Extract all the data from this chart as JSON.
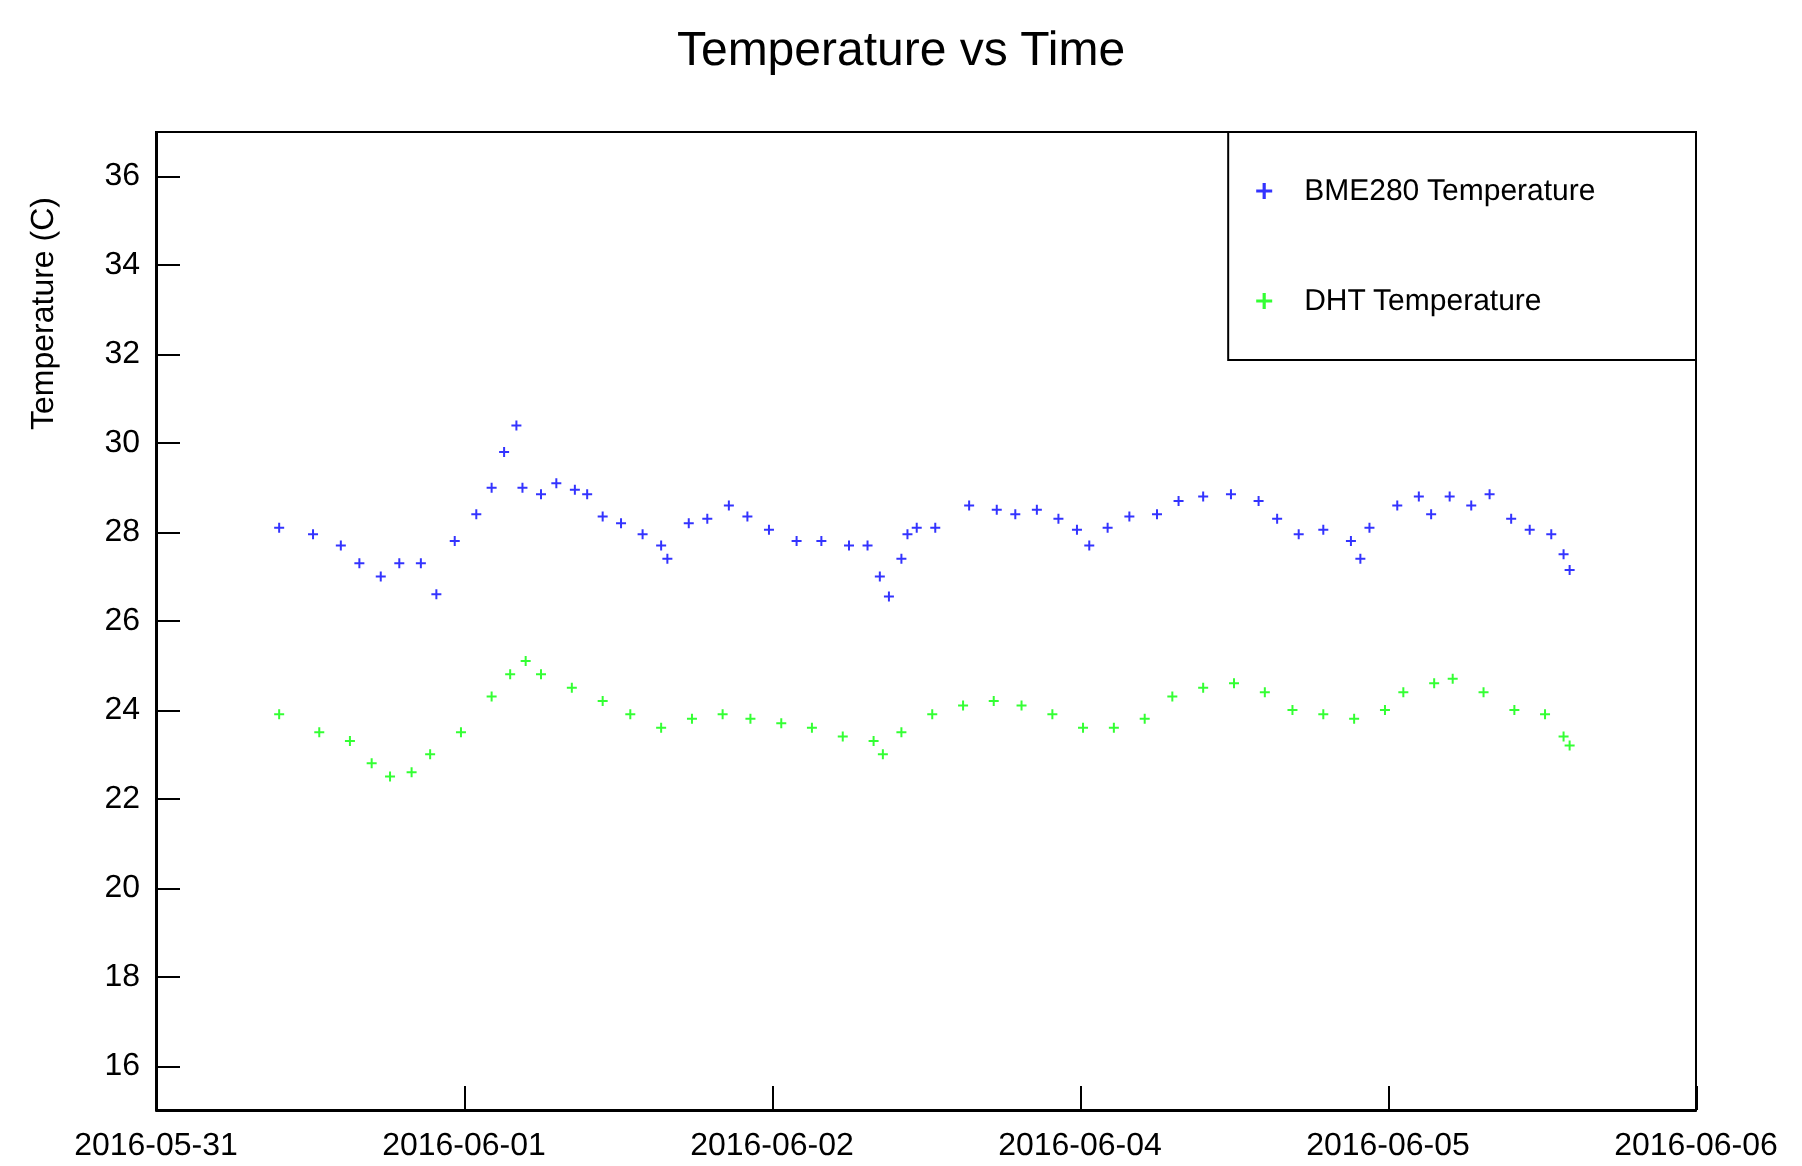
{
  "chart_data": {
    "type": "scatter",
    "title": "Temperature vs Time",
    "ylabel": "Temperature (C)",
    "xlim": [
      "2016-05-31T12:00",
      "2016-06-06T12:00"
    ],
    "xticks": [
      {
        "value": "2016-05-31T12:00",
        "label": "2016-05-31"
      },
      {
        "value": "2016-06-01T16:48",
        "label": "2016-06-01"
      },
      {
        "value": "2016-06-02T21:36",
        "label": "2016-06-02"
      },
      {
        "value": "2016-06-04T02:24",
        "label": "2016-06-04"
      },
      {
        "value": "2016-06-05T07:12",
        "label": "2016-06-05"
      },
      {
        "value": "2016-06-06T12:00",
        "label": "2016-06-06"
      }
    ],
    "ylim": [
      15,
      37
    ],
    "yticks": [
      16,
      18,
      20,
      22,
      24,
      26,
      28,
      30,
      32,
      34,
      36
    ],
    "grid": false,
    "legend": "top right",
    "marker": "cross",
    "series": [
      {
        "name": "BME280 Temperature",
        "color": "#0000ff",
        "x": [
          "2016-05-31T23:31",
          "2016-06-01T02:41",
          "2016-06-01T05:17",
          "2016-06-01T07:01",
          "2016-06-01T09:01",
          "2016-06-01T10:45",
          "2016-06-01T12:46",
          "2016-06-01T14:13",
          "2016-06-01T15:56",
          "2016-06-01T17:57",
          "2016-06-01T19:23",
          "2016-06-01T20:33",
          "2016-06-01T21:42",
          "2016-06-01T22:16",
          "2016-06-02T00:00",
          "2016-06-02T01:26",
          "2016-06-02T03:10",
          "2016-06-02T04:19",
          "2016-06-02T05:46",
          "2016-06-02T07:29",
          "2016-06-02T09:30",
          "2016-06-02T11:14",
          "2016-06-02T11:49",
          "2016-06-02T13:49",
          "2016-06-02T15:33",
          "2016-06-02T17:34",
          "2016-06-02T19:18",
          "2016-06-02T21:19",
          "2016-06-02T23:54",
          "2016-06-03T02:13",
          "2016-06-03T04:48",
          "2016-06-03T06:32",
          "2016-06-03T07:41",
          "2016-06-03T08:32",
          "2016-06-03T09:42",
          "2016-06-03T10:16",
          "2016-06-03T11:08",
          "2016-06-03T12:52",
          "2016-06-03T16:02",
          "2016-06-03T18:37",
          "2016-06-03T20:21",
          "2016-06-03T22:22",
          "2016-06-04T00:23",
          "2016-06-04T02:07",
          "2016-06-04T03:16",
          "2016-06-04T04:59",
          "2016-06-04T07:01",
          "2016-06-04T09:36",
          "2016-06-04T11:37",
          "2016-06-04T13:55",
          "2016-06-04T16:31",
          "2016-06-04T19:06",
          "2016-06-04T20:50",
          "2016-06-04T22:51",
          "2016-06-05T01:09",
          "2016-06-05T03:44",
          "2016-06-05T04:37",
          "2016-06-05T05:28",
          "2016-06-05T08:04",
          "2016-06-05T10:05",
          "2016-06-05T11:14",
          "2016-06-05T12:58",
          "2016-06-05T14:59",
          "2016-06-05T16:42",
          "2016-06-05T18:43",
          "2016-06-05T20:27",
          "2016-06-05T22:28",
          "2016-06-05T23:37",
          "2016-06-06T00:11"
        ],
        "values": [
          28.1,
          27.95,
          27.7,
          27.3,
          27.0,
          27.3,
          27.3,
          26.6,
          27.8,
          28.4,
          29.0,
          29.8,
          30.4,
          29.0,
          28.85,
          29.1,
          28.95,
          28.85,
          28.35,
          28.2,
          27.95,
          27.7,
          27.4,
          28.2,
          28.3,
          28.6,
          28.35,
          28.05,
          27.8,
          27.8,
          27.7,
          27.7,
          27.0,
          26.55,
          27.4,
          27.95,
          28.1,
          28.1,
          28.6,
          28.5,
          28.4,
          28.5,
          28.3,
          28.05,
          27.7,
          28.1,
          28.35,
          28.4,
          28.7,
          28.8,
          28.85,
          28.7,
          28.3,
          27.95,
          28.05,
          27.8,
          27.4,
          28.1,
          28.6,
          28.8,
          28.4,
          28.8,
          28.6,
          28.85,
          28.3,
          28.05,
          27.95,
          27.5,
          27.15
        ]
      },
      {
        "name": "DHT Temperature",
        "color": "#00ff00",
        "x": [
          "2016-05-31T23:31",
          "2016-06-01T03:16",
          "2016-06-01T06:08",
          "2016-06-01T08:10",
          "2016-06-01T09:53",
          "2016-06-01T11:54",
          "2016-06-01T13:38",
          "2016-06-01T16:31",
          "2016-06-01T19:23",
          "2016-06-01T21:07",
          "2016-06-01T22:34",
          "2016-06-02T00:00",
          "2016-06-02T02:53",
          "2016-06-02T05:46",
          "2016-06-02T08:21",
          "2016-06-02T11:14",
          "2016-06-02T14:07",
          "2016-06-02T16:59",
          "2016-06-02T19:35",
          "2016-06-02T22:28",
          "2016-06-03T01:20",
          "2016-06-03T04:13",
          "2016-06-03T07:06",
          "2016-06-03T07:58",
          "2016-06-03T09:42",
          "2016-06-03T12:35",
          "2016-06-03T15:28",
          "2016-06-03T18:20",
          "2016-06-03T20:56",
          "2016-06-03T23:49",
          "2016-06-04T02:41",
          "2016-06-04T05:34",
          "2016-06-04T08:27",
          "2016-06-04T11:02",
          "2016-06-04T13:55",
          "2016-06-04T16:48",
          "2016-06-04T19:41",
          "2016-06-04T22:16",
          "2016-06-05T01:09",
          "2016-06-05T04:02",
          "2016-06-05T06:55",
          "2016-06-05T08:38",
          "2016-06-05T11:31",
          "2016-06-05T13:15",
          "2016-06-05T16:08",
          "2016-06-05T19:01",
          "2016-06-05T21:53",
          "2016-06-05T23:37",
          "2016-06-06T00:11"
        ],
        "values": [
          23.9,
          23.5,
          23.3,
          22.8,
          22.5,
          22.6,
          23.0,
          23.5,
          24.3,
          24.8,
          25.1,
          24.8,
          24.5,
          24.2,
          23.9,
          23.6,
          23.8,
          23.9,
          23.8,
          23.7,
          23.6,
          23.4,
          23.3,
          23.0,
          23.5,
          23.9,
          24.1,
          24.2,
          24.1,
          23.9,
          23.6,
          23.6,
          23.8,
          24.3,
          24.5,
          24.6,
          24.4,
          24.0,
          23.9,
          23.8,
          24.0,
          24.4,
          24.6,
          24.7,
          24.4,
          24.0,
          23.9,
          23.4,
          23.2
        ]
      }
    ]
  }
}
